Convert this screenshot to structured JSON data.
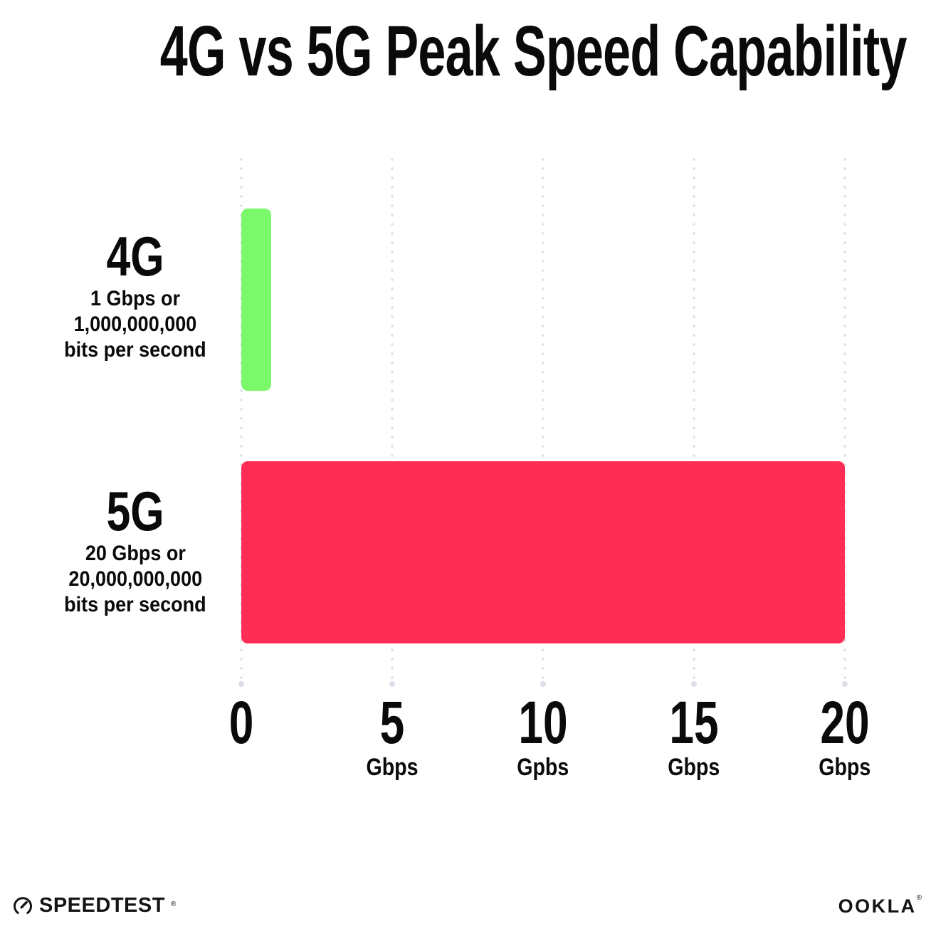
{
  "chart_data": {
    "type": "bar",
    "orientation": "horizontal",
    "title": "4G vs 5G Peak Speed Capability",
    "categories": [
      "4G",
      "5G"
    ],
    "values": [
      1,
      20
    ],
    "bar_colors": [
      "#7cf96a",
      "#fe2d55"
    ],
    "xlim": [
      0,
      20
    ],
    "x_ticks": [
      {
        "value": 0,
        "label": "0",
        "unit": ""
      },
      {
        "value": 5,
        "label": "5",
        "unit": "Gbps"
      },
      {
        "value": 10,
        "label": "10",
        "unit": "Gpbs"
      },
      {
        "value": 15,
        "label": "15",
        "unit": "Gbps"
      },
      {
        "value": 20,
        "label": "20",
        "unit": "Gbps"
      }
    ],
    "grid": "vertical-dotted",
    "gridline_color": "#dedee9",
    "legend": false
  },
  "rows": [
    {
      "name": "4G",
      "line1": "1 Gbps or",
      "line2": "1,000,000,000",
      "line3": "bits per second"
    },
    {
      "name": "5G",
      "line1": "20 Gbps or",
      "line2": "20,000,000,000",
      "line3": "bits per second"
    }
  ],
  "footer": {
    "speedtest_label": "SPEEDTEST",
    "speedtest_mark": "®",
    "ookla_label": "OOKLA",
    "ookla_mark": "®"
  }
}
